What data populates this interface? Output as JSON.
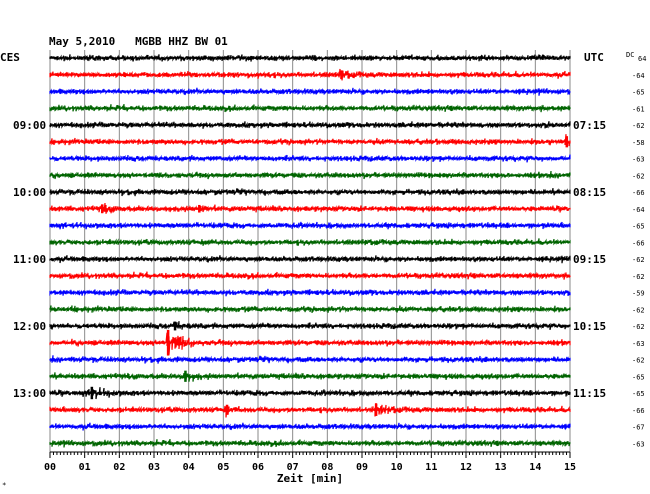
{
  "header": {
    "title": "May 5,2010   MGBB HHZ BW 01",
    "left_zone": "CES",
    "right_zone": "UTC",
    "dc_label": "DC",
    "dc_first": "64"
  },
  "footer": {
    "xlabel": "Zeit [min]",
    "corner_mark": "∗"
  },
  "colors": {
    "background": "#ffffff",
    "grid": "#8a8a8a",
    "traces": [
      "#000000",
      "#ff0000",
      "#0000ff",
      "#006400"
    ]
  },
  "chart_data": {
    "type": "line",
    "title": "May 5,2010   MGBB HHZ BW 01",
    "xlabel": "Zeit [min]",
    "ylabel": "",
    "xlim": [
      0,
      15
    ],
    "xticks": [
      "00",
      "01",
      "02",
      "03",
      "04",
      "05",
      "06",
      "07",
      "08",
      "09",
      "10",
      "11",
      "12",
      "13",
      "14",
      "15"
    ],
    "left_hour_labels": [
      "09:00",
      "10:00",
      "11:00",
      "12:00",
      "13:00"
    ],
    "right_hour_labels": [
      "07:15",
      "08:15",
      "09:15",
      "10:15",
      "11:15"
    ],
    "hour_label_rows": [
      4,
      8,
      12,
      16,
      20
    ],
    "grid": true,
    "traces": [
      {
        "row": 0,
        "color": "black",
        "dc": "64"
      },
      {
        "row": 1,
        "color": "red",
        "dc": "-64"
      },
      {
        "row": 2,
        "color": "blue",
        "dc": "-65"
      },
      {
        "row": 3,
        "color": "green",
        "dc": "-61"
      },
      {
        "row": 4,
        "color": "black",
        "dc": "-62"
      },
      {
        "row": 5,
        "color": "red",
        "dc": "-58"
      },
      {
        "row": 6,
        "color": "blue",
        "dc": "-63"
      },
      {
        "row": 7,
        "color": "green",
        "dc": "-62"
      },
      {
        "row": 8,
        "color": "black",
        "dc": "-66"
      },
      {
        "row": 9,
        "color": "red",
        "dc": "-64"
      },
      {
        "row": 10,
        "color": "blue",
        "dc": "-65"
      },
      {
        "row": 11,
        "color": "green",
        "dc": "-66"
      },
      {
        "row": 12,
        "color": "black",
        "dc": "-62"
      },
      {
        "row": 13,
        "color": "red",
        "dc": "-62"
      },
      {
        "row": 14,
        "color": "blue",
        "dc": "-59"
      },
      {
        "row": 15,
        "color": "green",
        "dc": "-62"
      },
      {
        "row": 16,
        "color": "black",
        "dc": "-62"
      },
      {
        "row": 17,
        "color": "red",
        "dc": "-63"
      },
      {
        "row": 18,
        "color": "blue",
        "dc": "-62"
      },
      {
        "row": 19,
        "color": "green",
        "dc": "-65"
      },
      {
        "row": 20,
        "color": "black",
        "dc": "-65"
      },
      {
        "row": 21,
        "color": "red",
        "dc": "-66"
      },
      {
        "row": 22,
        "color": "blue",
        "dc": "-67"
      },
      {
        "row": 23,
        "color": "green",
        "dc": "-63"
      }
    ],
    "events": [
      {
        "row": 1,
        "minute": 8.4,
        "amplitude": 2.0
      },
      {
        "row": 5,
        "minute": 14.9,
        "amplitude": 3.0
      },
      {
        "row": 9,
        "minute": 1.5,
        "amplitude": 2.0
      },
      {
        "row": 9,
        "minute": 4.3,
        "amplitude": 1.5
      },
      {
        "row": 16,
        "minute": 3.6,
        "amplitude": 2.0
      },
      {
        "row": 17,
        "minute": 3.4,
        "amplitude": 9.0
      },
      {
        "row": 19,
        "minute": 3.9,
        "amplitude": 3.0
      },
      {
        "row": 20,
        "minute": 1.2,
        "amplitude": 3.5
      },
      {
        "row": 21,
        "minute": 5.1,
        "amplitude": 2.5
      },
      {
        "row": 21,
        "minute": 9.4,
        "amplitude": 3.5
      }
    ]
  }
}
